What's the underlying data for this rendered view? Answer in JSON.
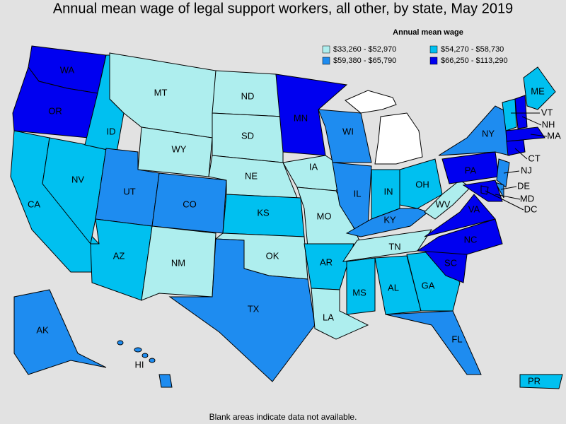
{
  "title": "Annual mean wage of legal support workers, all other, by state, May 2019",
  "legend": {
    "title": "Annual mean wage",
    "bins": [
      {
        "label": "$33,260 - $52,970",
        "color": "#aeeeee"
      },
      {
        "label": "$54,270 - $58,730",
        "color": "#00c0f0"
      },
      {
        "label": "$59,380 - $65,790",
        "color": "#1e8cf0"
      },
      {
        "label": "$66,250 - $113,290",
        "color": "#0000f0"
      }
    ]
  },
  "states": [
    {
      "label": "WA",
      "bin": 3
    },
    {
      "label": "OR",
      "bin": 3
    },
    {
      "label": "CA",
      "bin": 1
    },
    {
      "label": "NV",
      "bin": 1
    },
    {
      "label": "ID",
      "bin": 1
    },
    {
      "label": "MT",
      "bin": 0
    },
    {
      "label": "WY",
      "bin": 0
    },
    {
      "label": "UT",
      "bin": 2
    },
    {
      "label": "CO",
      "bin": 2
    },
    {
      "label": "AZ",
      "bin": 1
    },
    {
      "label": "NM",
      "bin": 0
    },
    {
      "label": "ND",
      "bin": 0
    },
    {
      "label": "SD",
      "bin": 0
    },
    {
      "label": "NE",
      "bin": 0
    },
    {
      "label": "KS",
      "bin": 1
    },
    {
      "label": "OK",
      "bin": 0
    },
    {
      "label": "TX",
      "bin": 2
    },
    {
      "label": "MN",
      "bin": 3
    },
    {
      "label": "IA",
      "bin": 0
    },
    {
      "label": "MO",
      "bin": 0
    },
    {
      "label": "AR",
      "bin": 1
    },
    {
      "label": "LA",
      "bin": 0
    },
    {
      "label": "WI",
      "bin": 2
    },
    {
      "label": "IL",
      "bin": 2
    },
    {
      "label": "IN",
      "bin": 1
    },
    {
      "label": "OH",
      "bin": 1
    },
    {
      "label": "KY",
      "bin": 2
    },
    {
      "label": "TN",
      "bin": 0
    },
    {
      "label": "MS",
      "bin": 1
    },
    {
      "label": "AL",
      "bin": 1
    },
    {
      "label": "GA",
      "bin": 1
    },
    {
      "label": "FL",
      "bin": 2
    },
    {
      "label": "SC",
      "bin": 3
    },
    {
      "label": "NC",
      "bin": 3
    },
    {
      "label": "VA",
      "bin": 3
    },
    {
      "label": "WV",
      "bin": 0
    },
    {
      "label": "PA",
      "bin": 3
    },
    {
      "label": "NY",
      "bin": 2
    },
    {
      "label": "ME",
      "bin": 1
    },
    {
      "label": "VT",
      "bin": 1
    },
    {
      "label": "NH",
      "bin": 3
    },
    {
      "label": "MA",
      "bin": 3
    },
    {
      "label": "CT",
      "bin": 3
    },
    {
      "label": "NJ",
      "bin": 2
    },
    {
      "label": "DE",
      "bin": 2
    },
    {
      "label": "MD",
      "bin": 3
    },
    {
      "label": "DC",
      "bin": 3
    },
    {
      "label": "AK",
      "bin": 2
    },
    {
      "label": "HI",
      "bin": 2
    },
    {
      "label": "PR",
      "bin": 1
    }
  ],
  "footnote": "Blank areas indicate data not available."
}
